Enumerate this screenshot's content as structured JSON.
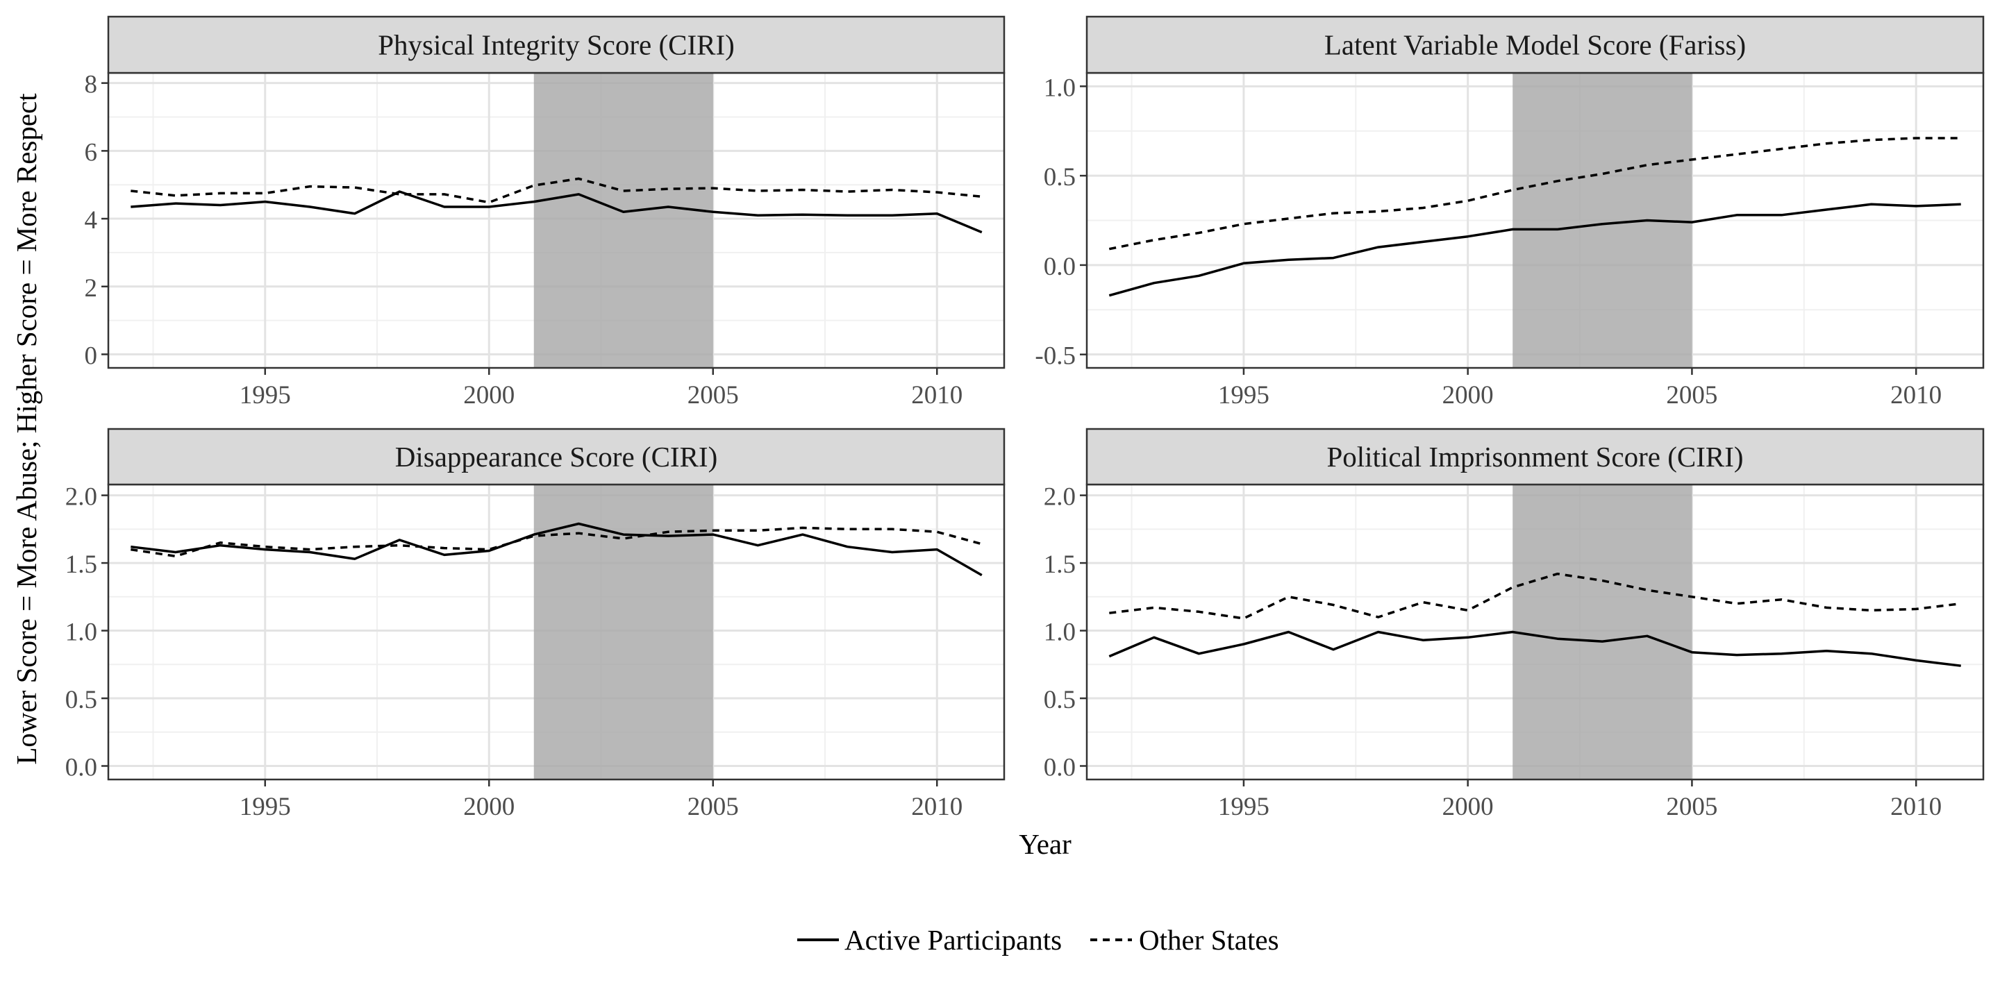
{
  "chart_data": {
    "type": "line",
    "ylabel": "Lower Score = More Abuse; Higher Score = More Respect",
    "xlabel": "Year",
    "legend_position": "bottom",
    "grid": true,
    "highlight_band": {
      "x": [
        2001,
        2005
      ],
      "color": "#a6a6a6"
    },
    "legend": [
      {
        "name": "Active Participants",
        "dash": "solid"
      },
      {
        "name": "Other States",
        "dash": "dashed"
      }
    ],
    "x": [
      1992,
      1993,
      1994,
      1995,
      1996,
      1997,
      1998,
      1999,
      2000,
      2001,
      2002,
      2003,
      2004,
      2005,
      2006,
      2007,
      2008,
      2009,
      2010,
      2011
    ],
    "xlim": [
      1991.5,
      2011.5
    ],
    "xticks": [
      1995,
      2000,
      2005,
      2010
    ],
    "xtick_labels": [
      "1995",
      "2000",
      "2005",
      "2010"
    ],
    "panels": [
      {
        "title": "Physical Integrity Score (CIRI)",
        "ylim": [
          -0.4,
          8.3
        ],
        "yticks": [
          0,
          2,
          4,
          6,
          8
        ],
        "ytick_labels": [
          "0",
          "2",
          "4",
          "6",
          "8"
        ],
        "series": [
          {
            "name": "Active Participants",
            "dash": "solid",
            "values": [
              4.35,
              4.45,
              4.4,
              4.5,
              4.35,
              4.15,
              4.8,
              4.35,
              4.35,
              4.5,
              4.72,
              4.2,
              4.35,
              4.2,
              4.1,
              4.12,
              4.1,
              4.1,
              4.15,
              3.6
            ]
          },
          {
            "name": "Other States",
            "dash": "dashed",
            "values": [
              4.82,
              4.68,
              4.75,
              4.75,
              4.95,
              4.92,
              4.72,
              4.72,
              4.48,
              4.98,
              5.18,
              4.82,
              4.88,
              4.9,
              4.82,
              4.85,
              4.8,
              4.85,
              4.78,
              4.65
            ]
          }
        ]
      },
      {
        "title": "Latent Variable Model Score (Fariss)",
        "ylim": [
          -0.575,
          1.075
        ],
        "yticks": [
          -0.5,
          0.0,
          0.5,
          1.0
        ],
        "ytick_labels": [
          "-0.5",
          "0.0",
          "0.5",
          "1.0"
        ],
        "series": [
          {
            "name": "Active Participants",
            "dash": "solid",
            "values": [
              -0.17,
              -0.1,
              -0.06,
              0.01,
              0.03,
              0.04,
              0.1,
              0.13,
              0.16,
              0.2,
              0.2,
              0.23,
              0.25,
              0.24,
              0.28,
              0.28,
              0.31,
              0.34,
              0.33,
              0.34
            ]
          },
          {
            "name": "Other States",
            "dash": "dashed",
            "values": [
              0.09,
              0.14,
              0.18,
              0.23,
              0.26,
              0.29,
              0.3,
              0.32,
              0.36,
              0.42,
              0.47,
              0.51,
              0.56,
              0.59,
              0.62,
              0.65,
              0.68,
              0.7,
              0.71,
              0.71
            ]
          }
        ]
      },
      {
        "title": "Disappearance Score (CIRI)",
        "ylim": [
          -0.1,
          2.08
        ],
        "yticks": [
          0.0,
          0.5,
          1.0,
          1.5,
          2.0
        ],
        "ytick_labels": [
          "0.0",
          "0.5",
          "1.0",
          "1.5",
          "2.0"
        ],
        "series": [
          {
            "name": "Active Participants",
            "dash": "solid",
            "values": [
              1.62,
              1.58,
              1.63,
              1.6,
              1.58,
              1.53,
              1.67,
              1.56,
              1.59,
              1.71,
              1.79,
              1.71,
              1.7,
              1.71,
              1.63,
              1.71,
              1.62,
              1.58,
              1.6,
              1.41
            ]
          },
          {
            "name": "Other States",
            "dash": "dashed",
            "values": [
              1.6,
              1.55,
              1.65,
              1.62,
              1.6,
              1.62,
              1.63,
              1.61,
              1.6,
              1.7,
              1.72,
              1.68,
              1.73,
              1.74,
              1.74,
              1.76,
              1.75,
              1.75,
              1.73,
              1.64
            ]
          }
        ]
      },
      {
        "title": "Political Imprisonment Score (CIRI)",
        "ylim": [
          -0.1,
          2.08
        ],
        "yticks": [
          0.0,
          0.5,
          1.0,
          1.5,
          2.0
        ],
        "ytick_labels": [
          "0.0",
          "0.5",
          "1.0",
          "1.5",
          "2.0"
        ],
        "series": [
          {
            "name": "Active Participants",
            "dash": "solid",
            "values": [
              0.81,
              0.95,
              0.83,
              0.9,
              0.99,
              0.86,
              0.99,
              0.93,
              0.95,
              0.99,
              0.94,
              0.92,
              0.96,
              0.84,
              0.82,
              0.83,
              0.85,
              0.83,
              0.78,
              0.74
            ]
          },
          {
            "name": "Other States",
            "dash": "dashed",
            "values": [
              1.13,
              1.17,
              1.14,
              1.09,
              1.25,
              1.19,
              1.1,
              1.21,
              1.15,
              1.32,
              1.42,
              1.37,
              1.3,
              1.25,
              1.2,
              1.23,
              1.17,
              1.15,
              1.16,
              1.2
            ]
          }
        ]
      }
    ]
  }
}
